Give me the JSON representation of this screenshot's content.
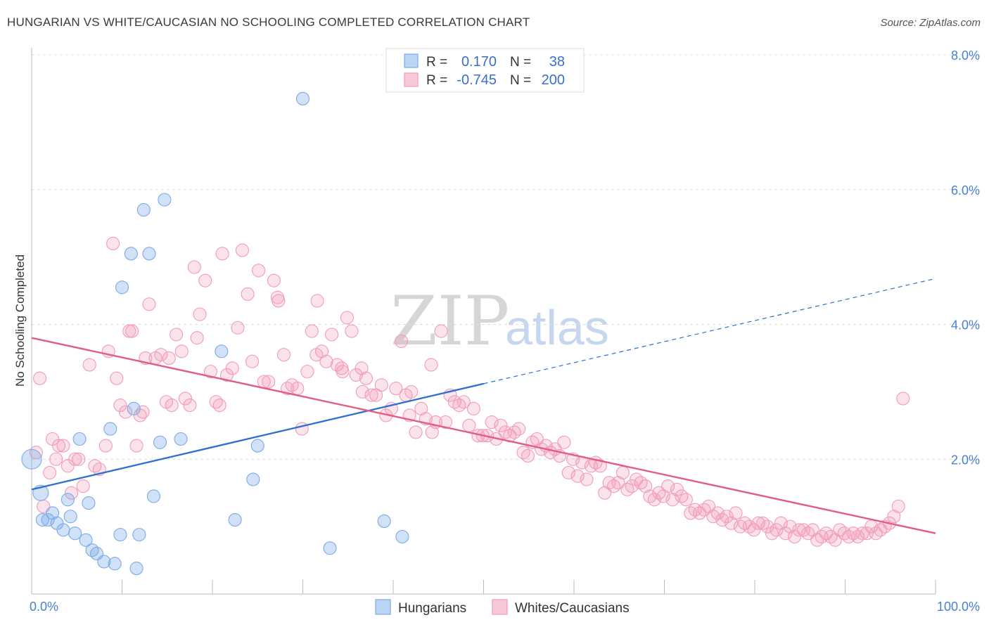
{
  "title": "HUNGARIAN VS WHITE/CAUCASIAN NO SCHOOLING COMPLETED CORRELATION CHART",
  "source": "Source: ZipAtlas.com",
  "watermark": {
    "zip": "ZIP",
    "atlas": "atlas"
  },
  "colors": {
    "blue": "#7aaae8",
    "blue_line": "#2e6fd0",
    "pink": "#f29bb8",
    "pink_line": "#e05c8a",
    "tick": "#4a7fd0"
  },
  "legend_top": [
    {
      "r_label": "R =",
      "r_value": "0.170",
      "n_label": "N =",
      "n_value": "38"
    },
    {
      "r_label": "R =",
      "r_value": "-0.745",
      "n_label": "N =",
      "n_value": "200"
    }
  ],
  "legend_bottom": [
    "Hungarians",
    "Whites/Caucasians"
  ],
  "chart_data": {
    "type": "scatter",
    "ylabel": "No Schooling Completed",
    "xlabel": "",
    "xlim": [
      0,
      100
    ],
    "ylim": [
      0,
      8.0
    ],
    "x_tick_labels": [
      "0.0%",
      "100.0%"
    ],
    "y_ticks": [
      2.0,
      4.0,
      6.0,
      8.0
    ],
    "y_tick_labels": [
      "2.0%",
      "4.0%",
      "6.0%",
      "8.0%"
    ],
    "grid": true,
    "legend_position": "top-center",
    "series": [
      {
        "name": "Hungarians",
        "trend": {
          "x0": 0,
          "y0": 1.55,
          "x1": 50,
          "y1": 3.12,
          "dashed_to_x": 100,
          "dashed_to_y": 4.68
        },
        "points": [
          [
            0,
            2.0,
            14
          ],
          [
            1,
            1.5,
            11
          ],
          [
            1.2,
            1.1,
            9
          ],
          [
            1.8,
            1.1,
            9
          ],
          [
            2.3,
            1.2,
            9
          ],
          [
            2.8,
            1.05,
            9
          ],
          [
            3.5,
            0.95,
            9
          ],
          [
            4,
            1.4,
            9
          ],
          [
            4.3,
            1.15,
            9
          ],
          [
            4.8,
            0.9,
            9
          ],
          [
            5.3,
            2.3,
            9
          ],
          [
            6,
            0.8,
            9
          ],
          [
            6.3,
            1.35,
            9
          ],
          [
            6.7,
            0.65,
            9
          ],
          [
            7.2,
            0.6,
            9
          ],
          [
            8,
            0.48,
            9
          ],
          [
            8.7,
            2.45,
            9
          ],
          [
            9.2,
            0.45,
            9
          ],
          [
            9.8,
            0.88,
            9
          ],
          [
            10,
            4.55,
            9
          ],
          [
            11,
            5.05,
            9
          ],
          [
            11.3,
            2.75,
            9
          ],
          [
            11.6,
            0.38,
            9
          ],
          [
            11.9,
            0.88,
            9
          ],
          [
            12.4,
            5.7,
            9
          ],
          [
            13,
            5.05,
            9
          ],
          [
            13.5,
            1.45,
            9
          ],
          [
            14.2,
            2.25,
            9
          ],
          [
            14.7,
            5.85,
            9
          ],
          [
            16.5,
            2.3,
            9
          ],
          [
            21,
            3.6,
            9
          ],
          [
            22.5,
            1.1,
            9
          ],
          [
            24.5,
            1.7,
            9
          ],
          [
            25,
            2.2,
            9
          ],
          [
            30,
            7.35,
            9
          ],
          [
            33,
            0.68,
            9
          ],
          [
            39,
            1.08,
            9
          ],
          [
            41,
            0.85,
            9
          ]
        ]
      },
      {
        "name": "Whites/Caucasians",
        "trend": {
          "x0": 0,
          "y0": 3.8,
          "x1": 100,
          "y1": 0.9
        },
        "points": [
          [
            0.5,
            2.1
          ],
          [
            0.9,
            3.2
          ],
          [
            1.3,
            1.3
          ],
          [
            2,
            1.8
          ],
          [
            2.3,
            2.3
          ],
          [
            2.7,
            2.0
          ],
          [
            3,
            2.2
          ],
          [
            3.5,
            2.2
          ],
          [
            4,
            1.9
          ],
          [
            4.4,
            1.5
          ],
          [
            4.8,
            2.0
          ],
          [
            5.2,
            2.0
          ],
          [
            5.7,
            1.6
          ],
          [
            6.4,
            3.4
          ],
          [
            7,
            1.9
          ],
          [
            7.5,
            1.85
          ],
          [
            8.2,
            2.2
          ],
          [
            8.5,
            3.6
          ],
          [
            9,
            5.2
          ],
          [
            9.4,
            3.2
          ],
          [
            9.8,
            2.8
          ],
          [
            10.4,
            2.7
          ],
          [
            11.1,
            3.9
          ],
          [
            11.6,
            2.2
          ],
          [
            12,
            2.65
          ],
          [
            12.6,
            3.5
          ],
          [
            13,
            4.3
          ],
          [
            13.7,
            3.5
          ],
          [
            14.3,
            3.55
          ],
          [
            14.9,
            2.85
          ],
          [
            15.5,
            2.8
          ],
          [
            16,
            3.85
          ],
          [
            16.6,
            3.6
          ],
          [
            17,
            2.9
          ],
          [
            17.5,
            2.8
          ],
          [
            18,
            4.85
          ],
          [
            18.6,
            4.15
          ],
          [
            19.2,
            4.65
          ],
          [
            19.8,
            3.3
          ],
          [
            20.4,
            2.85
          ],
          [
            21.1,
            5.05
          ],
          [
            21.6,
            3.25
          ],
          [
            22.2,
            3.35
          ],
          [
            22.8,
            3.95
          ],
          [
            23.3,
            5.1
          ],
          [
            23.9,
            4.45
          ],
          [
            24.4,
            3.45
          ],
          [
            25.1,
            4.8
          ],
          [
            25.7,
            3.15
          ],
          [
            26.2,
            3.15
          ],
          [
            26.8,
            4.65
          ],
          [
            27.3,
            4.35
          ],
          [
            27.9,
            3.55
          ],
          [
            28.3,
            3.05
          ],
          [
            28.8,
            3.1
          ],
          [
            29.4,
            3.05
          ],
          [
            29.9,
            2.45
          ],
          [
            30.5,
            3.3
          ],
          [
            31,
            3.9
          ],
          [
            31.6,
            4.35
          ],
          [
            32.1,
            3.6
          ],
          [
            32.6,
            3.45
          ],
          [
            33.2,
            3.85
          ],
          [
            33.8,
            3.4
          ],
          [
            34.3,
            3.35
          ],
          [
            34.9,
            4.1
          ],
          [
            35.4,
            3.9
          ],
          [
            35.9,
            3.25
          ],
          [
            36.5,
            3.35
          ],
          [
            37,
            3.2
          ],
          [
            37.6,
            2.95
          ],
          [
            38.1,
            2.95
          ],
          [
            38.7,
            3.1
          ],
          [
            39.2,
            2.65
          ],
          [
            39.8,
            2.75
          ],
          [
            40.3,
            3.05
          ],
          [
            40.9,
            3.75
          ],
          [
            41.4,
            2.95
          ],
          [
            42,
            3.0
          ],
          [
            42.5,
            2.4
          ],
          [
            43.1,
            2.75
          ],
          [
            43.6,
            2.6
          ],
          [
            44.2,
            3.4
          ],
          [
            44.7,
            2.55
          ],
          [
            45.3,
            3.9
          ],
          [
            45.8,
            2.55
          ],
          [
            46.3,
            2.95
          ],
          [
            46.8,
            2.85
          ],
          [
            47.3,
            2.8
          ],
          [
            47.8,
            2.85
          ],
          [
            48.4,
            2.5
          ],
          [
            48.9,
            2.75
          ],
          [
            49.4,
            2.35
          ],
          [
            49.9,
            2.35
          ],
          [
            50.4,
            2.35
          ],
          [
            50.9,
            2.55
          ],
          [
            51.4,
            2.3
          ],
          [
            51.9,
            2.5
          ],
          [
            52.4,
            2.4
          ],
          [
            52.9,
            2.35
          ],
          [
            53.4,
            2.4
          ],
          [
            53.9,
            2.45
          ],
          [
            54.4,
            2.1
          ],
          [
            54.9,
            2.05
          ],
          [
            55.4,
            2.25
          ],
          [
            55.9,
            2.3
          ],
          [
            56.4,
            2.15
          ],
          [
            56.9,
            2.2
          ],
          [
            57.4,
            2.1
          ],
          [
            57.9,
            2.15
          ],
          [
            58.4,
            2.05
          ],
          [
            58.9,
            2.25
          ],
          [
            59.4,
            1.8
          ],
          [
            59.9,
            2.0
          ],
          [
            60.4,
            1.75
          ],
          [
            60.9,
            1.95
          ],
          [
            61.4,
            1.7
          ],
          [
            61.9,
            1.9
          ],
          [
            62.4,
            1.95
          ],
          [
            62.9,
            1.9
          ],
          [
            63.4,
            1.5
          ],
          [
            63.9,
            1.65
          ],
          [
            64.4,
            1.6
          ],
          [
            64.9,
            1.65
          ],
          [
            65.4,
            1.8
          ],
          [
            65.9,
            1.55
          ],
          [
            66.4,
            1.6
          ],
          [
            66.9,
            1.7
          ],
          [
            67.4,
            1.65
          ],
          [
            67.9,
            1.6
          ],
          [
            68.4,
            1.45
          ],
          [
            68.9,
            1.4
          ],
          [
            69.4,
            1.5
          ],
          [
            69.9,
            1.45
          ],
          [
            70.4,
            1.6
          ],
          [
            70.9,
            1.4
          ],
          [
            71.4,
            1.55
          ],
          [
            71.9,
            1.45
          ],
          [
            72.4,
            1.4
          ],
          [
            72.9,
            1.2
          ],
          [
            73.4,
            1.25
          ],
          [
            73.9,
            1.2
          ],
          [
            74.4,
            1.25
          ],
          [
            74.9,
            1.3
          ],
          [
            75.4,
            1.15
          ],
          [
            75.9,
            1.2
          ],
          [
            76.4,
            1.1
          ],
          [
            76.9,
            1.15
          ],
          [
            77.4,
            1.05
          ],
          [
            77.9,
            1.2
          ],
          [
            78.4,
            1.0
          ],
          [
            78.9,
            1.05
          ],
          [
            79.4,
            1.0
          ],
          [
            79.9,
            0.95
          ],
          [
            80.4,
            1.05
          ],
          [
            80.9,
            1.05
          ],
          [
            81.4,
            1.0
          ],
          [
            81.9,
            0.9
          ],
          [
            82.4,
            0.95
          ],
          [
            82.9,
            1.05
          ],
          [
            83.4,
            0.9
          ],
          [
            83.9,
            1.0
          ],
          [
            84.4,
            0.85
          ],
          [
            84.9,
            0.95
          ],
          [
            85.4,
            0.95
          ],
          [
            85.9,
            0.9
          ],
          [
            86.4,
            0.95
          ],
          [
            86.9,
            0.8
          ],
          [
            87.4,
            0.85
          ],
          [
            87.9,
            0.9
          ],
          [
            88.4,
            0.85
          ],
          [
            88.9,
            0.8
          ],
          [
            89.4,
            0.95
          ],
          [
            89.9,
            0.9
          ],
          [
            90.4,
            0.85
          ],
          [
            90.9,
            0.9
          ],
          [
            91.4,
            0.85
          ],
          [
            91.9,
            0.9
          ],
          [
            92.4,
            0.9
          ],
          [
            92.9,
            1.0
          ],
          [
            93.4,
            0.9
          ],
          [
            93.9,
            0.95
          ],
          [
            94.4,
            1.0
          ],
          [
            94.9,
            1.05
          ],
          [
            95.4,
            1.15
          ],
          [
            95.9,
            1.3
          ],
          [
            96.4,
            2.9
          ],
          [
            44.3,
            2.4
          ],
          [
            41.8,
            2.65
          ],
          [
            36.6,
            3.0
          ],
          [
            34.4,
            3.3
          ],
          [
            31.5,
            3.55
          ],
          [
            27.2,
            4.4
          ],
          [
            20.8,
            2.8
          ],
          [
            18.3,
            3.8
          ],
          [
            15.2,
            3.5
          ],
          [
            12.3,
            2.7
          ],
          [
            10.8,
            3.9
          ]
        ]
      }
    ]
  }
}
